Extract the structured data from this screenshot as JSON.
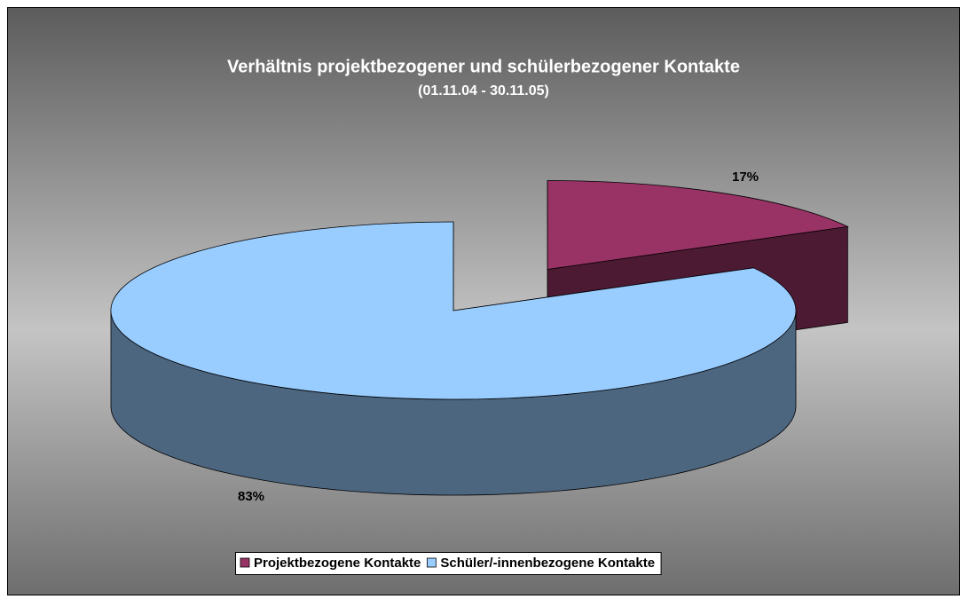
{
  "chart_data": {
    "type": "pie",
    "title": "Verhältnis projektbezogener und schülerbezogener Kontakte",
    "subtitle": "(01.11.04 - 30.11.05)",
    "categories": [
      "Projektbezogene Kontakte",
      "Schüler/-innenbezogene Kontakte"
    ],
    "values": [
      17,
      83
    ],
    "value_labels": [
      "17%",
      "83%"
    ],
    "colors": [
      "#993366",
      "#99ccff"
    ],
    "legend": "bottom"
  }
}
